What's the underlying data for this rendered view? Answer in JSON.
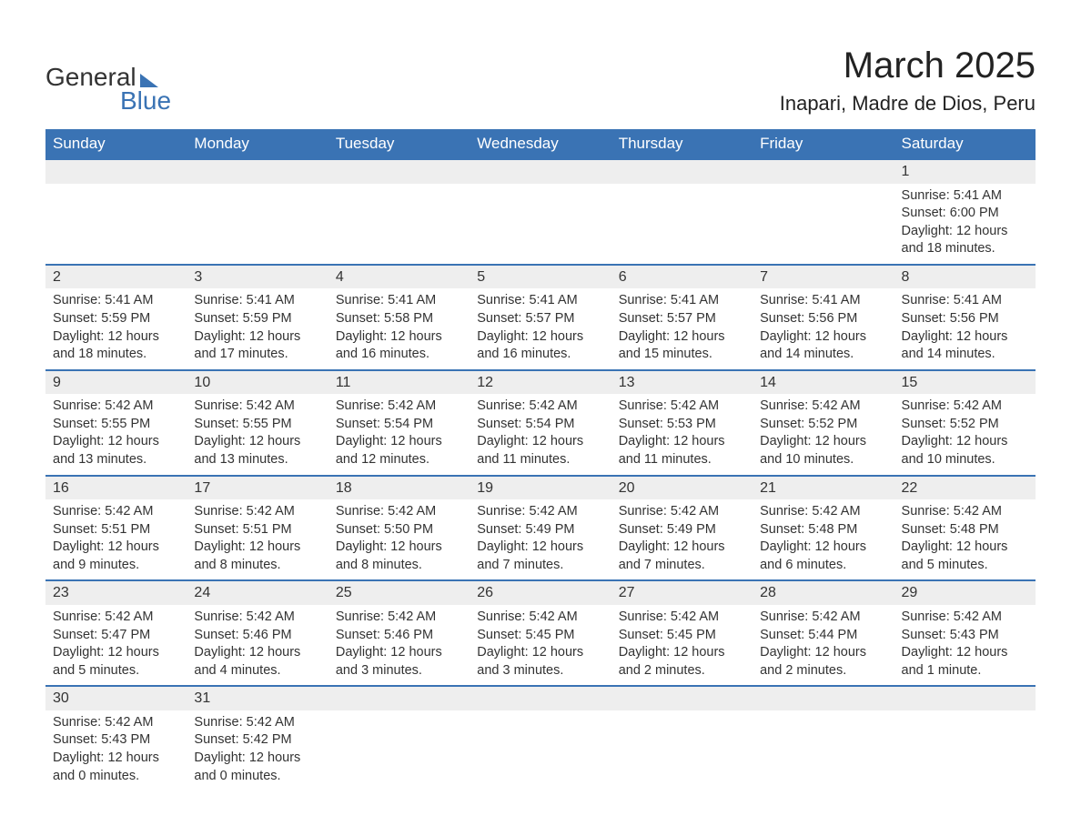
{
  "logo": {
    "word1": "General",
    "word2": "Blue"
  },
  "title": {
    "month": "March 2025",
    "location": "Inapari, Madre de Dios, Peru"
  },
  "colors": {
    "header_bg": "#3a73b4",
    "header_text": "#ffffff",
    "row_border": "#3a73b4",
    "daynum_bg": "#eeeeee",
    "body_text": "#333333",
    "background": "#ffffff"
  },
  "typography": {
    "title_fontsize": 40,
    "location_fontsize": 22,
    "header_fontsize": 17,
    "cell_fontsize": 14.5,
    "daynum_fontsize": 16,
    "logo_fontsize": 28
  },
  "weekdays": [
    "Sunday",
    "Monday",
    "Tuesday",
    "Wednesday",
    "Thursday",
    "Friday",
    "Saturday"
  ],
  "weeks": [
    [
      null,
      null,
      null,
      null,
      null,
      null,
      {
        "day": "1",
        "sunrise": "Sunrise: 5:41 AM",
        "sunset": "Sunset: 6:00 PM",
        "daylight1": "Daylight: 12 hours",
        "daylight2": "and 18 minutes."
      }
    ],
    [
      {
        "day": "2",
        "sunrise": "Sunrise: 5:41 AM",
        "sunset": "Sunset: 5:59 PM",
        "daylight1": "Daylight: 12 hours",
        "daylight2": "and 18 minutes."
      },
      {
        "day": "3",
        "sunrise": "Sunrise: 5:41 AM",
        "sunset": "Sunset: 5:59 PM",
        "daylight1": "Daylight: 12 hours",
        "daylight2": "and 17 minutes."
      },
      {
        "day": "4",
        "sunrise": "Sunrise: 5:41 AM",
        "sunset": "Sunset: 5:58 PM",
        "daylight1": "Daylight: 12 hours",
        "daylight2": "and 16 minutes."
      },
      {
        "day": "5",
        "sunrise": "Sunrise: 5:41 AM",
        "sunset": "Sunset: 5:57 PM",
        "daylight1": "Daylight: 12 hours",
        "daylight2": "and 16 minutes."
      },
      {
        "day": "6",
        "sunrise": "Sunrise: 5:41 AM",
        "sunset": "Sunset: 5:57 PM",
        "daylight1": "Daylight: 12 hours",
        "daylight2": "and 15 minutes."
      },
      {
        "day": "7",
        "sunrise": "Sunrise: 5:41 AM",
        "sunset": "Sunset: 5:56 PM",
        "daylight1": "Daylight: 12 hours",
        "daylight2": "and 14 minutes."
      },
      {
        "day": "8",
        "sunrise": "Sunrise: 5:41 AM",
        "sunset": "Sunset: 5:56 PM",
        "daylight1": "Daylight: 12 hours",
        "daylight2": "and 14 minutes."
      }
    ],
    [
      {
        "day": "9",
        "sunrise": "Sunrise: 5:42 AM",
        "sunset": "Sunset: 5:55 PM",
        "daylight1": "Daylight: 12 hours",
        "daylight2": "and 13 minutes."
      },
      {
        "day": "10",
        "sunrise": "Sunrise: 5:42 AM",
        "sunset": "Sunset: 5:55 PM",
        "daylight1": "Daylight: 12 hours",
        "daylight2": "and 13 minutes."
      },
      {
        "day": "11",
        "sunrise": "Sunrise: 5:42 AM",
        "sunset": "Sunset: 5:54 PM",
        "daylight1": "Daylight: 12 hours",
        "daylight2": "and 12 minutes."
      },
      {
        "day": "12",
        "sunrise": "Sunrise: 5:42 AM",
        "sunset": "Sunset: 5:54 PM",
        "daylight1": "Daylight: 12 hours",
        "daylight2": "and 11 minutes."
      },
      {
        "day": "13",
        "sunrise": "Sunrise: 5:42 AM",
        "sunset": "Sunset: 5:53 PM",
        "daylight1": "Daylight: 12 hours",
        "daylight2": "and 11 minutes."
      },
      {
        "day": "14",
        "sunrise": "Sunrise: 5:42 AM",
        "sunset": "Sunset: 5:52 PM",
        "daylight1": "Daylight: 12 hours",
        "daylight2": "and 10 minutes."
      },
      {
        "day": "15",
        "sunrise": "Sunrise: 5:42 AM",
        "sunset": "Sunset: 5:52 PM",
        "daylight1": "Daylight: 12 hours",
        "daylight2": "and 10 minutes."
      }
    ],
    [
      {
        "day": "16",
        "sunrise": "Sunrise: 5:42 AM",
        "sunset": "Sunset: 5:51 PM",
        "daylight1": "Daylight: 12 hours",
        "daylight2": "and 9 minutes."
      },
      {
        "day": "17",
        "sunrise": "Sunrise: 5:42 AM",
        "sunset": "Sunset: 5:51 PM",
        "daylight1": "Daylight: 12 hours",
        "daylight2": "and 8 minutes."
      },
      {
        "day": "18",
        "sunrise": "Sunrise: 5:42 AM",
        "sunset": "Sunset: 5:50 PM",
        "daylight1": "Daylight: 12 hours",
        "daylight2": "and 8 minutes."
      },
      {
        "day": "19",
        "sunrise": "Sunrise: 5:42 AM",
        "sunset": "Sunset: 5:49 PM",
        "daylight1": "Daylight: 12 hours",
        "daylight2": "and 7 minutes."
      },
      {
        "day": "20",
        "sunrise": "Sunrise: 5:42 AM",
        "sunset": "Sunset: 5:49 PM",
        "daylight1": "Daylight: 12 hours",
        "daylight2": "and 7 minutes."
      },
      {
        "day": "21",
        "sunrise": "Sunrise: 5:42 AM",
        "sunset": "Sunset: 5:48 PM",
        "daylight1": "Daylight: 12 hours",
        "daylight2": "and 6 minutes."
      },
      {
        "day": "22",
        "sunrise": "Sunrise: 5:42 AM",
        "sunset": "Sunset: 5:48 PM",
        "daylight1": "Daylight: 12 hours",
        "daylight2": "and 5 minutes."
      }
    ],
    [
      {
        "day": "23",
        "sunrise": "Sunrise: 5:42 AM",
        "sunset": "Sunset: 5:47 PM",
        "daylight1": "Daylight: 12 hours",
        "daylight2": "and 5 minutes."
      },
      {
        "day": "24",
        "sunrise": "Sunrise: 5:42 AM",
        "sunset": "Sunset: 5:46 PM",
        "daylight1": "Daylight: 12 hours",
        "daylight2": "and 4 minutes."
      },
      {
        "day": "25",
        "sunrise": "Sunrise: 5:42 AM",
        "sunset": "Sunset: 5:46 PM",
        "daylight1": "Daylight: 12 hours",
        "daylight2": "and 3 minutes."
      },
      {
        "day": "26",
        "sunrise": "Sunrise: 5:42 AM",
        "sunset": "Sunset: 5:45 PM",
        "daylight1": "Daylight: 12 hours",
        "daylight2": "and 3 minutes."
      },
      {
        "day": "27",
        "sunrise": "Sunrise: 5:42 AM",
        "sunset": "Sunset: 5:45 PM",
        "daylight1": "Daylight: 12 hours",
        "daylight2": "and 2 minutes."
      },
      {
        "day": "28",
        "sunrise": "Sunrise: 5:42 AM",
        "sunset": "Sunset: 5:44 PM",
        "daylight1": "Daylight: 12 hours",
        "daylight2": "and 2 minutes."
      },
      {
        "day": "29",
        "sunrise": "Sunrise: 5:42 AM",
        "sunset": "Sunset: 5:43 PM",
        "daylight1": "Daylight: 12 hours",
        "daylight2": "and 1 minute."
      }
    ],
    [
      {
        "day": "30",
        "sunrise": "Sunrise: 5:42 AM",
        "sunset": "Sunset: 5:43 PM",
        "daylight1": "Daylight: 12 hours",
        "daylight2": "and 0 minutes."
      },
      {
        "day": "31",
        "sunrise": "Sunrise: 5:42 AM",
        "sunset": "Sunset: 5:42 PM",
        "daylight1": "Daylight: 12 hours",
        "daylight2": "and 0 minutes."
      },
      null,
      null,
      null,
      null,
      null
    ]
  ]
}
